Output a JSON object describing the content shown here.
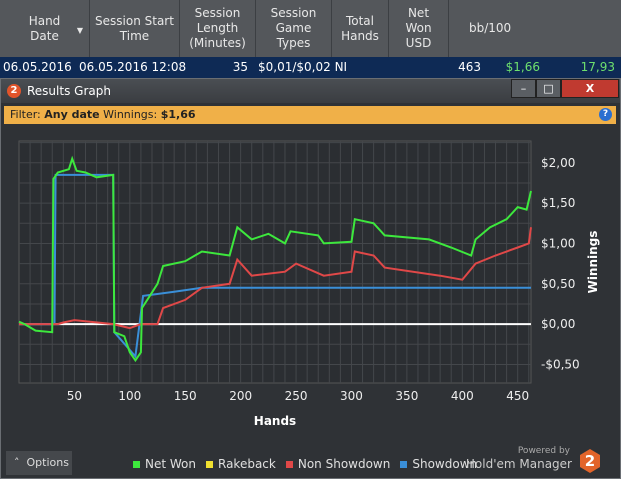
{
  "table": {
    "columns": [
      "Hand\nDate",
      "Session Start\nTime",
      "Session\nLength\n(Minutes)",
      "Session\nGame\nTypes",
      "Total\nHands",
      "Net\nWon\nUSD",
      "bb/100"
    ],
    "row": {
      "hand_date": "06.05.2016",
      "start_time": "06.05.2016 12:08",
      "length": "35",
      "game_types": "$0,01/$0,02 NI",
      "total_hands": "463",
      "net_won": "$1,66",
      "bb100": "17,93"
    },
    "sort_icon": "caret-down-icon",
    "positive_color": "#6ee06e"
  },
  "window": {
    "title": "Results Graph",
    "minimize": "–",
    "maximize": "□",
    "close": "X"
  },
  "filter": {
    "label": "Filter:",
    "date": "Any date",
    "winnings_label": "Winnings:",
    "winnings": "$1,66",
    "help": "?"
  },
  "chart_data": {
    "type": "line",
    "xlabel": "Hands",
    "ylabel": "Winnings",
    "xlim": [
      0,
      462
    ],
    "ylim": [
      -0.73,
      2.27
    ],
    "xticks": [
      50,
      100,
      150,
      200,
      250,
      300,
      350,
      400,
      450
    ],
    "yticks": [
      {
        "v": 2,
        "l": "$2,00"
      },
      {
        "v": 1.5,
        "l": "$1,50"
      },
      {
        "v": 1,
        "l": "$1,00"
      },
      {
        "v": 0.5,
        "l": "$0,50"
      },
      {
        "v": 0,
        "l": "$0,00"
      },
      {
        "v": -0.5,
        "l": "-$0,50"
      }
    ],
    "grid": true,
    "series": [
      {
        "name": "Net Won",
        "color": "#3de83d",
        "points": [
          [
            0,
            0.03
          ],
          [
            5,
            0
          ],
          [
            15,
            -0.08
          ],
          [
            30,
            -0.1
          ],
          [
            31,
            1.8
          ],
          [
            35,
            1.88
          ],
          [
            45,
            1.92
          ],
          [
            48,
            2.05
          ],
          [
            52,
            1.9
          ],
          [
            60,
            1.88
          ],
          [
            70,
            1.82
          ],
          [
            85,
            1.85
          ],
          [
            86,
            -0.1
          ],
          [
            95,
            -0.15
          ],
          [
            100,
            -0.35
          ],
          [
            105,
            -0.45
          ],
          [
            110,
            -0.35
          ],
          [
            111,
            0.2
          ],
          [
            118,
            0.35
          ],
          [
            125,
            0.5
          ],
          [
            130,
            0.72
          ],
          [
            150,
            0.78
          ],
          [
            165,
            0.9
          ],
          [
            190,
            0.85
          ],
          [
            197,
            1.2
          ],
          [
            210,
            1.05
          ],
          [
            225,
            1.12
          ],
          [
            240,
            1.0
          ],
          [
            245,
            1.15
          ],
          [
            270,
            1.1
          ],
          [
            275,
            1.0
          ],
          [
            300,
            1.02
          ],
          [
            303,
            1.3
          ],
          [
            320,
            1.25
          ],
          [
            330,
            1.1
          ],
          [
            370,
            1.05
          ],
          [
            390,
            0.95
          ],
          [
            408,
            0.85
          ],
          [
            412,
            1.05
          ],
          [
            425,
            1.2
          ],
          [
            440,
            1.3
          ],
          [
            450,
            1.45
          ],
          [
            458,
            1.42
          ],
          [
            462,
            1.65
          ]
        ]
      },
      {
        "name": "Rakeback",
        "color": "#f0e030",
        "points": []
      },
      {
        "name": "Non Showdown",
        "color": "#e04848",
        "points": [
          [
            0,
            0
          ],
          [
            35,
            0
          ],
          [
            40,
            0.02
          ],
          [
            50,
            0.05
          ],
          [
            85,
            0
          ],
          [
            100,
            -0.05
          ],
          [
            110,
            0
          ],
          [
            125,
            0
          ],
          [
            130,
            0.2
          ],
          [
            150,
            0.3
          ],
          [
            165,
            0.45
          ],
          [
            190,
            0.5
          ],
          [
            197,
            0.8
          ],
          [
            210,
            0.6
          ],
          [
            240,
            0.65
          ],
          [
            250,
            0.75
          ],
          [
            275,
            0.6
          ],
          [
            300,
            0.65
          ],
          [
            303,
            0.9
          ],
          [
            320,
            0.85
          ],
          [
            330,
            0.7
          ],
          [
            380,
            0.6
          ],
          [
            400,
            0.55
          ],
          [
            412,
            0.75
          ],
          [
            430,
            0.85
          ],
          [
            450,
            0.95
          ],
          [
            460,
            1.0
          ],
          [
            462,
            1.2
          ]
        ]
      },
      {
        "name": "Showdown",
        "color": "#3a8fd8",
        "points": [
          [
            0,
            0
          ],
          [
            32,
            0
          ],
          [
            33,
            1.85
          ],
          [
            85,
            1.85
          ],
          [
            86,
            -0.1
          ],
          [
            105,
            -0.4
          ],
          [
            112,
            0.35
          ],
          [
            140,
            0.4
          ],
          [
            165,
            0.45
          ],
          [
            462,
            0.45
          ]
        ]
      }
    ]
  },
  "options": {
    "label": "Options",
    "icon": "chevron-up-icon"
  },
  "branding": {
    "powered": "Powered by",
    "name": "Hold'em Manager",
    "logo": "2"
  }
}
